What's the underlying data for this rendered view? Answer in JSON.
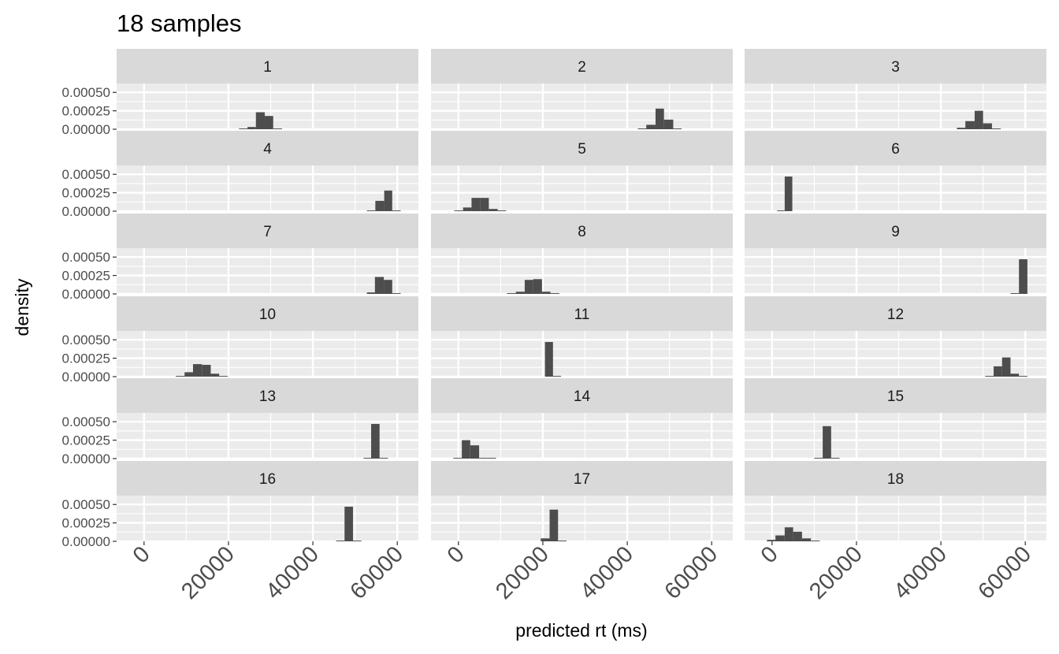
{
  "chart_data": {
    "type": "bar",
    "subtype": "faceted-histogram",
    "title": "18 samples",
    "xlabel": "predicted rt (ms)",
    "ylabel": "density",
    "xlim": [
      -6500,
      65000
    ],
    "ylim": [
      0,
      0.00062
    ],
    "x_ticks": [
      0,
      20000,
      40000,
      60000
    ],
    "x_tick_labels": [
      "0",
      "20000",
      "40000",
      "60000"
    ],
    "y_ticks": [
      0,
      0.00025,
      0.0005
    ],
    "y_tick_labels": [
      "0.00000",
      "0.00025",
      "0.00050"
    ],
    "layout": {
      "cols": 3,
      "rows": 6
    },
    "colors": {
      "bar": "#4d4d4d",
      "panel_bg": "#ebebeb",
      "strip_bg": "#d9d9d9",
      "grid": "#ffffff"
    },
    "facets": [
      {
        "label": "1",
        "bins": [
          [
            22500,
            24500,
            1e-05
          ],
          [
            24500,
            26500,
            3e-05
          ],
          [
            26500,
            28600,
            0.00023
          ],
          [
            28600,
            30600,
            0.00018
          ],
          [
            30600,
            32700,
            1e-05
          ]
        ]
      },
      {
        "label": "2",
        "bins": [
          [
            42500,
            44500,
            1e-05
          ],
          [
            44500,
            46700,
            6e-05
          ],
          [
            46700,
            48700,
            0.00028
          ],
          [
            48700,
            50900,
            0.00013
          ],
          [
            50900,
            52900,
            1e-05
          ]
        ]
      },
      {
        "label": "3",
        "bins": [
          [
            43800,
            45800,
            2e-05
          ],
          [
            45800,
            48000,
            0.00011
          ],
          [
            48000,
            50000,
            0.00025
          ],
          [
            50000,
            52100,
            8e-05
          ],
          [
            52100,
            54200,
            1e-05
          ]
        ]
      },
      {
        "label": "4",
        "bins": [
          [
            52800,
            54800,
            1e-05
          ],
          [
            54800,
            56900,
            0.00014
          ],
          [
            56900,
            58800,
            0.00028
          ],
          [
            58800,
            60800,
            1e-05
          ]
        ]
      },
      {
        "label": "5",
        "bins": [
          [
            -1000,
            1100,
            1e-05
          ],
          [
            1100,
            3100,
            5e-05
          ],
          [
            3100,
            5200,
            0.00018
          ],
          [
            5200,
            7200,
            0.00018
          ],
          [
            7200,
            9300,
            3e-05
          ],
          [
            9300,
            11300,
            1e-05
          ]
        ]
      },
      {
        "label": "6",
        "bins": [
          [
            1200,
            3000,
            1e-05
          ],
          [
            3000,
            4800,
            0.00047
          ]
        ]
      },
      {
        "label": "7",
        "bins": [
          [
            52800,
            54700,
            2e-05
          ],
          [
            54700,
            56800,
            0.00023
          ],
          [
            56800,
            58800,
            0.00019
          ],
          [
            58800,
            60800,
            1e-05
          ]
        ]
      },
      {
        "label": "8",
        "bins": [
          [
            11500,
            13600,
            1e-05
          ],
          [
            13600,
            15700,
            3e-05
          ],
          [
            15700,
            17700,
            0.00019
          ],
          [
            17700,
            19800,
            0.0002
          ],
          [
            19800,
            21800,
            3e-05
          ],
          [
            21800,
            23900,
            1e-05
          ]
        ]
      },
      {
        "label": "9",
        "bins": [
          [
            56500,
            58500,
            1e-05
          ],
          [
            58500,
            60500,
            0.00047
          ]
        ]
      },
      {
        "label": "10",
        "bins": [
          [
            7500,
            9600,
            1e-05
          ],
          [
            9600,
            11600,
            6e-05
          ],
          [
            11600,
            13700,
            0.00017
          ],
          [
            13700,
            15800,
            0.00016
          ],
          [
            15800,
            17800,
            4e-05
          ],
          [
            17800,
            19800,
            1e-05
          ]
        ]
      },
      {
        "label": "11",
        "bins": [
          [
            20500,
            22400,
            0.00047
          ],
          [
            22400,
            24300,
            1e-05
          ]
        ]
      },
      {
        "label": "12",
        "bins": [
          [
            50500,
            52500,
            1e-05
          ],
          [
            52500,
            54500,
            0.00014
          ],
          [
            54500,
            56500,
            0.00026
          ],
          [
            56500,
            58500,
            4e-05
          ],
          [
            58500,
            60500,
            1e-05
          ]
        ]
      },
      {
        "label": "13",
        "bins": [
          [
            52000,
            53800,
            1e-05
          ],
          [
            53800,
            55800,
            0.00047
          ],
          [
            55800,
            57800,
            1e-05
          ]
        ]
      },
      {
        "label": "14",
        "bins": [
          [
            -1200,
            800,
            1e-05
          ],
          [
            800,
            2800,
            0.00025
          ],
          [
            2800,
            4900,
            0.00018
          ],
          [
            4900,
            6900,
            1e-05
          ],
          [
            6900,
            8900,
            1e-05
          ]
        ]
      },
      {
        "label": "15",
        "bins": [
          [
            10000,
            12000,
            1e-05
          ],
          [
            12000,
            14000,
            0.00044
          ],
          [
            14000,
            16000,
            1e-05
          ]
        ]
      },
      {
        "label": "16",
        "bins": [
          [
            45500,
            47500,
            1e-05
          ],
          [
            47500,
            49500,
            0.00047
          ],
          [
            49500,
            51500,
            1e-05
          ]
        ]
      },
      {
        "label": "17",
        "bins": [
          [
            19500,
            21600,
            4e-05
          ],
          [
            21600,
            23600,
            0.00043
          ],
          [
            23600,
            25600,
            1e-05
          ]
        ]
      },
      {
        "label": "18",
        "bins": [
          [
            -1200,
            800,
            2e-05
          ],
          [
            800,
            3000,
            8e-05
          ],
          [
            3000,
            5000,
            0.00019
          ],
          [
            5000,
            7100,
            0.00013
          ],
          [
            7100,
            9200,
            4e-05
          ],
          [
            9200,
            11300,
            1e-05
          ]
        ]
      }
    ]
  }
}
